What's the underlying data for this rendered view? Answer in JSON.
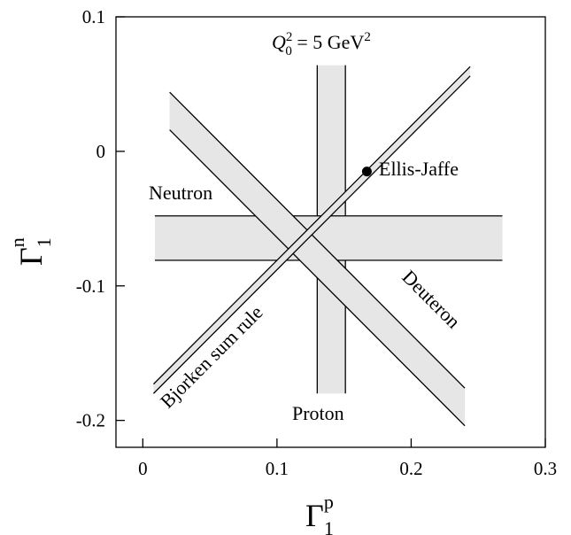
{
  "chart_data": {
    "type": "line",
    "x_axis": {
      "label_main": "Γ",
      "label_sup": "p",
      "label_sub": "1",
      "range": [
        -0.02,
        0.3
      ],
      "ticks": [
        0,
        0.1,
        0.2,
        0.3
      ],
      "tick_labels": [
        "0",
        "0.1",
        "0.2",
        "0.3"
      ]
    },
    "y_axis": {
      "label_main": "Γ",
      "label_sup": "n",
      "label_sub": "1",
      "range": [
        -0.22,
        0.1
      ],
      "ticks": [
        0.1,
        0,
        -0.1,
        -0.2
      ],
      "tick_labels": [
        "0.1",
        "0",
        "-0.1",
        "-0.2"
      ]
    },
    "grid": false,
    "header": {
      "lhs_main": "Q",
      "lhs_sup": "2",
      "lhs_sub": "0",
      "rhs": " = 5 GeV",
      "rhs_sup": "2"
    },
    "bands": [
      {
        "name": "Proton",
        "orientation": "vertical",
        "x_low": 0.13,
        "x_high": 0.151,
        "y_range": [
          -0.18,
          0.064
        ]
      },
      {
        "name": "Neutron",
        "orientation": "horizontal",
        "y_low": -0.081,
        "y_high": -0.048,
        "x_range": [
          0.009,
          0.268
        ]
      },
      {
        "name": "Deuteron",
        "orientation": "diagonal",
        "slope": -1,
        "intercept_low": 0.036,
        "intercept_high": 0.064,
        "x_range": [
          0.02,
          0.24
        ]
      },
      {
        "name": "Bjorken sum rule",
        "orientation": "diagonal",
        "slope": 1,
        "intercept_low": -0.188,
        "intercept_high": -0.181,
        "x_range": [
          0.008,
          0.244
        ]
      }
    ],
    "points": [
      {
        "name": "Ellis-Jaffe",
        "x": 0.167,
        "y": -0.015
      }
    ],
    "annotations": {
      "neutron": "Neutron",
      "proton": "Proton",
      "deuteron": "Deuteron",
      "bjorken": "Bjorken sum rule",
      "ellis_jaffe": "Ellis-Jaffe"
    },
    "colors": {
      "band_fill": "#e6e6e6",
      "line": "#000000",
      "point": "#000000"
    }
  }
}
